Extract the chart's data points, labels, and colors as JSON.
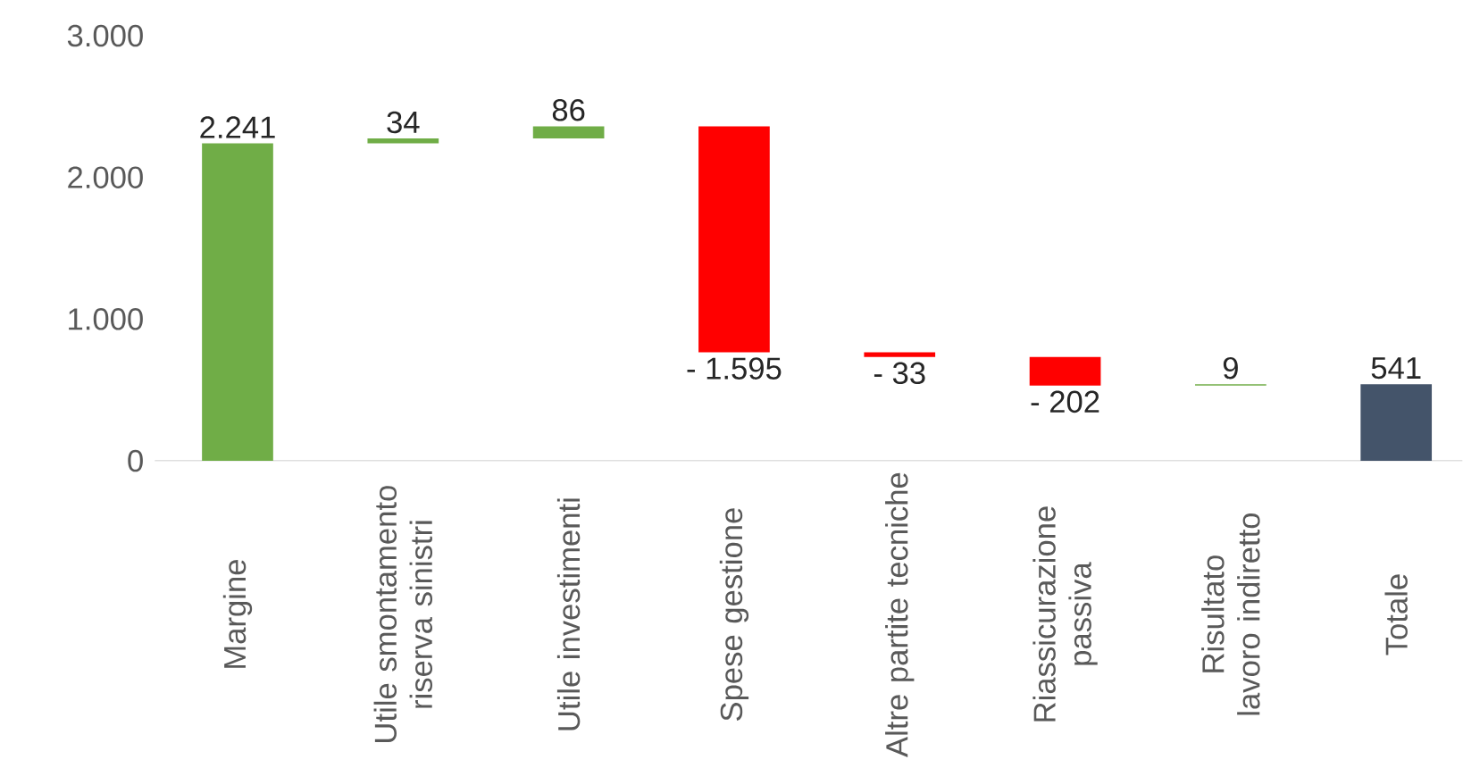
{
  "chart_data": {
    "type": "bar",
    "categories": [
      "Margine",
      "Utile smontamento riserva sinistri",
      "Utile investimenti",
      "Spese gestione",
      "Altre partite tecniche",
      "Riassicurazione passiva",
      "Risultato lavoro indiretto",
      "Totale"
    ],
    "values": [
      2241,
      34,
      86,
      -1595,
      -33,
      -202,
      9,
      541
    ],
    "base": [
      0,
      2241,
      2275,
      2361,
      766,
      733,
      531,
      0
    ],
    "colors": [
      "#70ad47",
      "#70ad47",
      "#70ad47",
      "#ff0000",
      "#ff0000",
      "#ff0000",
      "#70ad47",
      "#44546a"
    ],
    "value_labels": [
      "2.241",
      "34",
      "86",
      "- 1.595",
      "- 33",
      "- 202",
      "9",
      "541"
    ],
    "ylim": [
      0,
      3000
    ],
    "yticks": [
      {
        "value": 0,
        "label": "0"
      },
      {
        "value": 1000,
        "label": "1.000"
      },
      {
        "value": 2000,
        "label": "2.000"
      },
      {
        "value": 3000,
        "label": "3.000"
      }
    ]
  }
}
